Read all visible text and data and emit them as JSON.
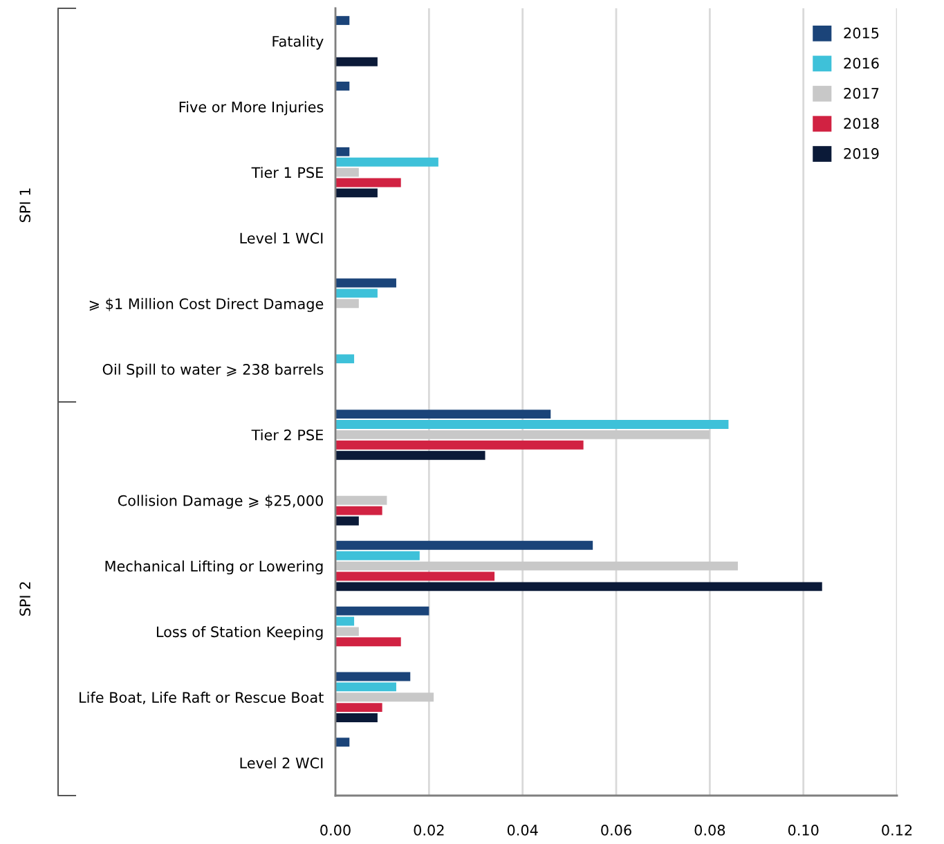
{
  "chart_data": {
    "type": "bar",
    "orientation": "horizontal",
    "categories": [
      "Fatality",
      "Five or More Injuries",
      "Tier 1 PSE",
      "Level 1 WCI",
      "⩾ $1 Million Cost Direct Damage",
      "Oil Spill to water ⩾ 238 barrels",
      "Tier 2 PSE",
      "Collision Damage ⩾ $25,000",
      "Mechanical Lifting or Lowering",
      "Loss of Station Keeping",
      "Life Boat, Life Raft or Rescue Boat",
      "Level 2 WCI"
    ],
    "series": [
      {
        "name": "2015",
        "color": "#1b4479",
        "values": [
          0.003,
          0.003,
          0.003,
          null,
          0.013,
          null,
          0.046,
          null,
          0.055,
          0.02,
          0.016,
          0.003
        ]
      },
      {
        "name": "2016",
        "color": "#3ec1d9",
        "values": [
          null,
          null,
          0.022,
          null,
          0.009,
          0.004,
          0.084,
          null,
          0.018,
          0.004,
          0.013,
          null
        ]
      },
      {
        "name": "2017",
        "color": "#c8c8c8",
        "values": [
          null,
          null,
          0.005,
          null,
          0.005,
          null,
          0.08,
          0.011,
          0.086,
          0.005,
          0.021,
          null
        ]
      },
      {
        "name": "2018",
        "color": "#d12242",
        "values": [
          null,
          null,
          0.014,
          null,
          null,
          null,
          0.053,
          0.01,
          0.034,
          0.014,
          0.01,
          null
        ]
      },
      {
        "name": "2019",
        "color": "#0b1a38",
        "values": [
          0.009,
          null,
          0.009,
          null,
          null,
          null,
          0.032,
          0.005,
          0.104,
          null,
          0.009,
          null
        ]
      }
    ],
    "xlim": [
      0,
      0.12
    ],
    "xticks": [
      {
        "value": 0,
        "label": "0.00"
      },
      {
        "value": 0.02,
        "label": "0.02"
      },
      {
        "value": 0.04,
        "label": "0.04"
      },
      {
        "value": 0.06,
        "label": "0.06"
      },
      {
        "value": 0.08,
        "label": "0.08"
      },
      {
        "value": 0.1,
        "label": "0.10"
      },
      {
        "value": 0.12,
        "label": "0.12"
      }
    ],
    "grid": "x",
    "legend": "top right",
    "annotations": [
      "SPI 1",
      "SPI 2"
    ]
  }
}
